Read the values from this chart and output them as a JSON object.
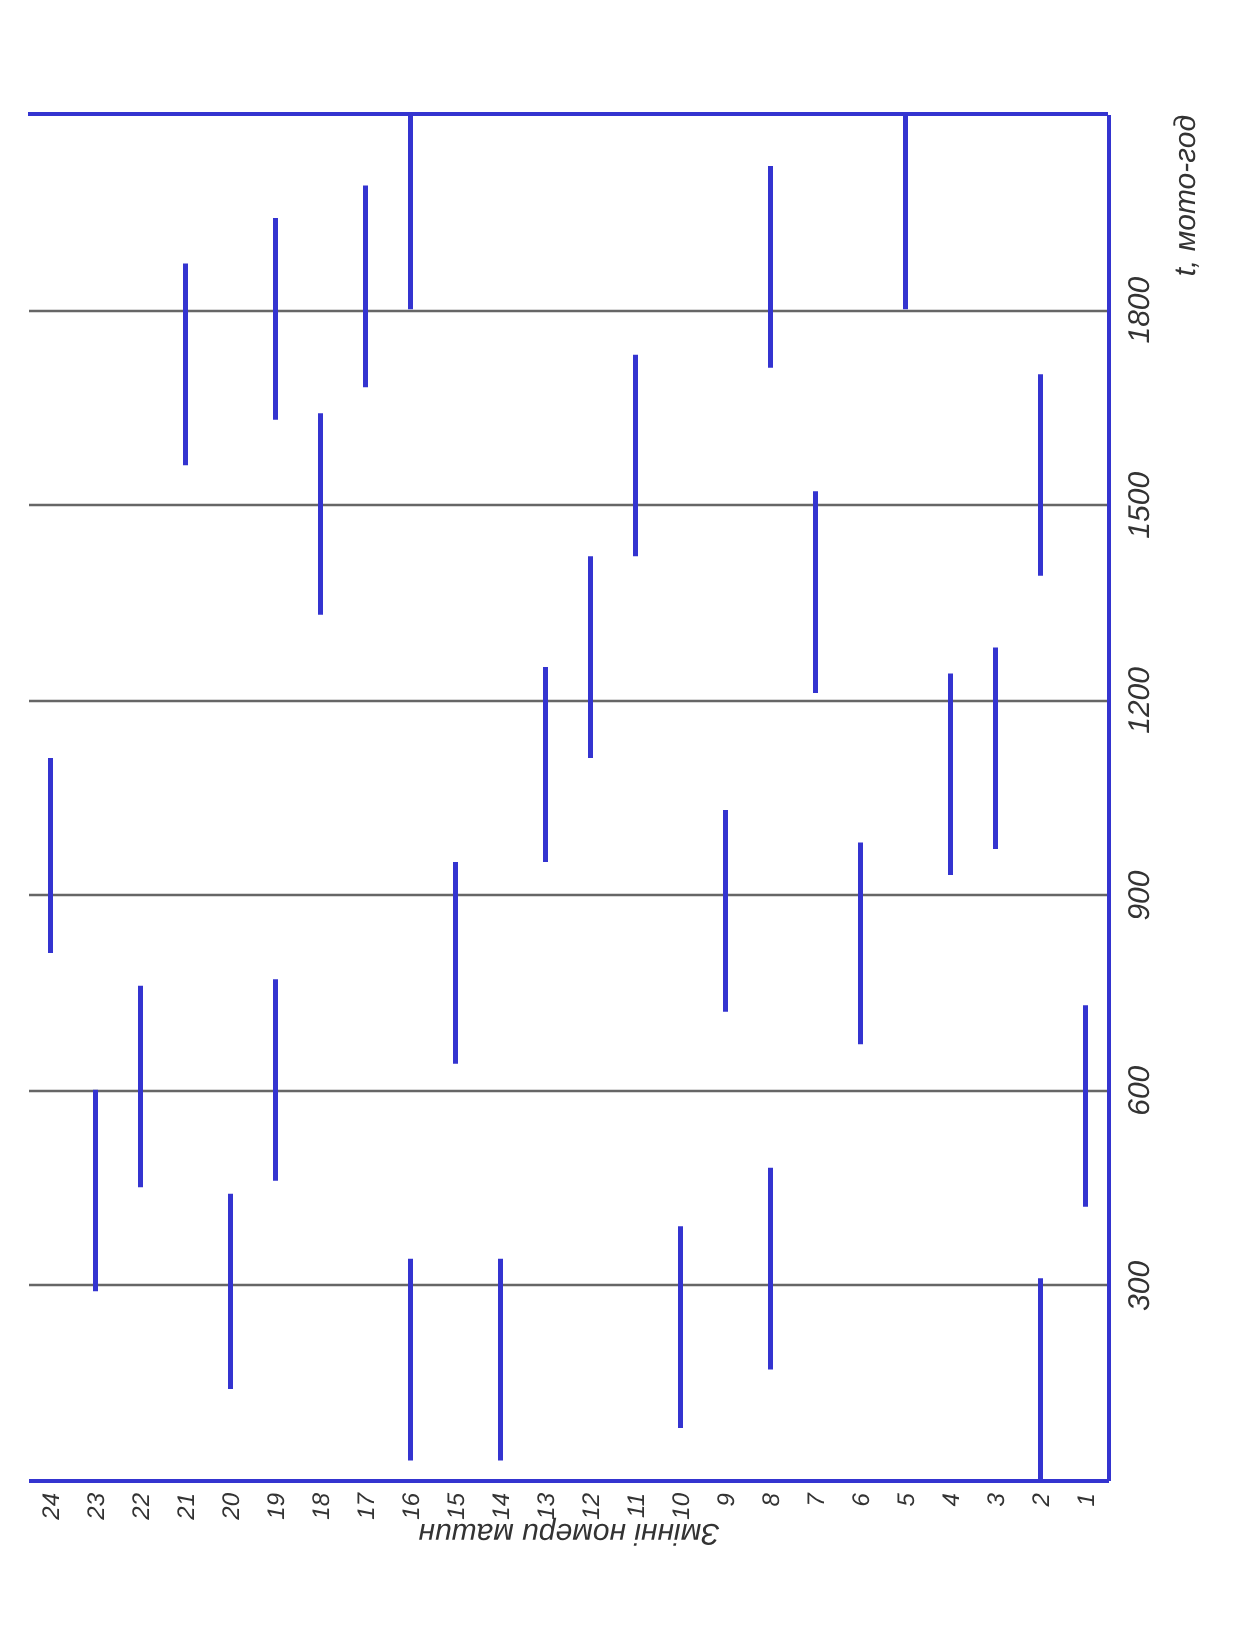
{
  "chart_data": {
    "type": "bar",
    "xlabel": "Змінні номери машин",
    "ylabel": "t, мото-год",
    "categories": [
      "24",
      "23",
      "22",
      "21",
      "20",
      "19",
      "18",
      "17",
      "16",
      "15",
      "14",
      "13",
      "12",
      "11",
      "10",
      "9",
      "8",
      "7",
      "6",
      "5",
      "4",
      "3",
      "2",
      "1"
    ],
    "series": [
      {
        "color": "#3434d0",
        "base": [
          810,
          290,
          450,
          1560,
          140,
          460,
          1330,
          1680,
          30,
          640,
          30,
          950,
          1110,
          1420,
          80,
          720,
          170,
          1210,
          670,
          1800,
          930,
          970,
          0,
          420
        ],
        "values": [
          300,
          310,
          310,
          310,
          300,
          310,
          310,
          310,
          310,
          310,
          310,
          300,
          310,
          310,
          310,
          310,
          310,
          310,
          310,
          300,
          310,
          310,
          310,
          310
        ]
      },
      {
        "color": "#3434d0",
        "base": [
          null,
          null,
          null,
          null,
          null,
          1630,
          null,
          null,
          1800,
          null,
          null,
          null,
          null,
          null,
          null,
          null,
          1710,
          null,
          null,
          null,
          null,
          null,
          1390,
          null
        ],
        "values": [
          null,
          null,
          null,
          null,
          null,
          310,
          null,
          null,
          300,
          null,
          null,
          null,
          null,
          null,
          null,
          null,
          310,
          null,
          null,
          null,
          null,
          null,
          310,
          null
        ]
      }
    ],
    "ylim": [
      0,
      2100
    ],
    "yticks": [
      300,
      600,
      900,
      1200,
      1500,
      1800
    ],
    "grid": "y"
  }
}
